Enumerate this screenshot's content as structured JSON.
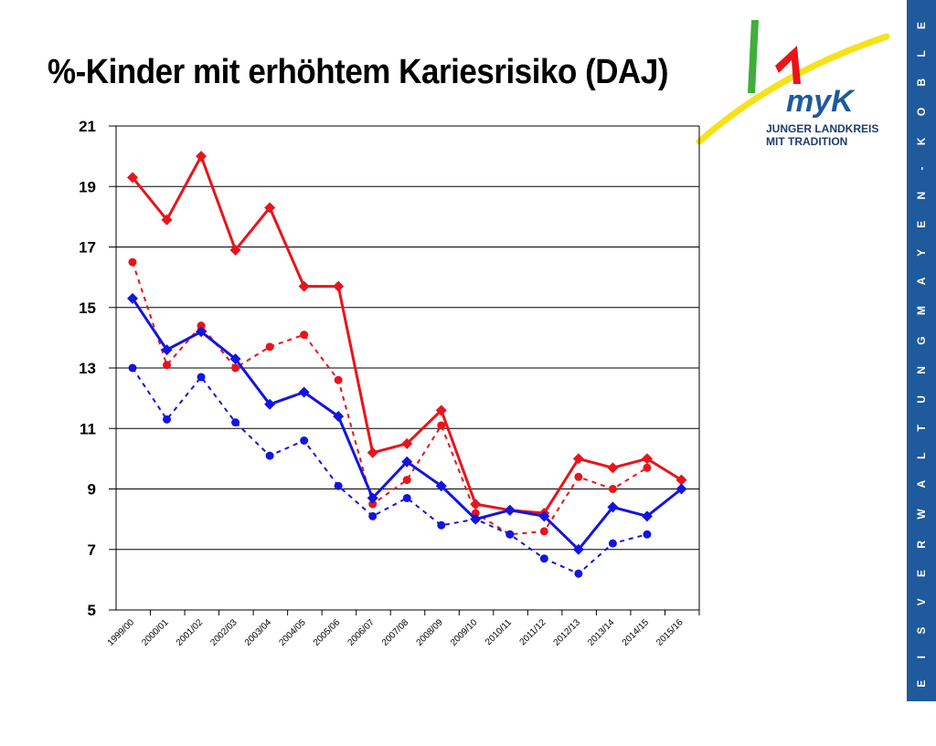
{
  "title": "%-Kinder mit erhöhtem Kariesrisiko (DAJ)",
  "logo": {
    "mark": "myK",
    "line1": "JUNGER LANDKREIS",
    "line2": "MIT TRADITION"
  },
  "sidebar_text": "K R E I S V E R W A L T U N G   M A Y E N - K O B L E N Z",
  "colors": {
    "red": "#e8141b",
    "blue": "#1414e0",
    "sidebar": "#1e5a9c",
    "grid": "#000000"
  },
  "chart_data": {
    "type": "line",
    "categories": [
      "1999/00",
      "2000/01",
      "2001/02",
      "2002/03",
      "2003/04",
      "2004/05",
      "2005/06",
      "2006/07",
      "2007/08",
      "2008/09",
      "2009/10",
      "2010/11",
      "2011/12",
      "2012/13",
      "2013/14",
      "2014/15",
      "2015/16"
    ],
    "ylim": [
      5,
      21
    ],
    "yticks": [
      5,
      7,
      9,
      11,
      13,
      15,
      17,
      19,
      21
    ],
    "grid": true,
    "series": [
      {
        "color": "#e8141b",
        "style": "solid",
        "marker": "diamond",
        "values": [
          19.3,
          17.9,
          20.0,
          16.9,
          18.3,
          15.7,
          15.7,
          10.2,
          10.5,
          11.6,
          8.5,
          8.3,
          8.2,
          10.0,
          9.7,
          10.0,
          9.3
        ]
      },
      {
        "color": "#e8141b",
        "style": "dotted",
        "marker": "circle",
        "values": [
          16.5,
          13.1,
          14.4,
          13.0,
          13.7,
          14.1,
          12.6,
          8.5,
          9.3,
          11.1,
          8.2,
          7.5,
          7.6,
          9.4,
          9.0,
          9.7,
          null
        ]
      },
      {
        "color": "#1414e0",
        "style": "solid",
        "marker": "diamond",
        "values": [
          15.3,
          13.6,
          14.2,
          13.3,
          11.8,
          12.2,
          11.4,
          8.7,
          9.9,
          9.1,
          8.0,
          8.3,
          8.1,
          7.0,
          8.4,
          8.1,
          9.0
        ]
      },
      {
        "color": "#1414e0",
        "style": "dotted",
        "marker": "circle",
        "values": [
          13.0,
          11.3,
          12.7,
          11.2,
          10.1,
          10.6,
          9.1,
          8.1,
          8.7,
          7.8,
          8.0,
          7.5,
          6.7,
          6.2,
          7.2,
          7.5,
          null
        ]
      }
    ]
  }
}
